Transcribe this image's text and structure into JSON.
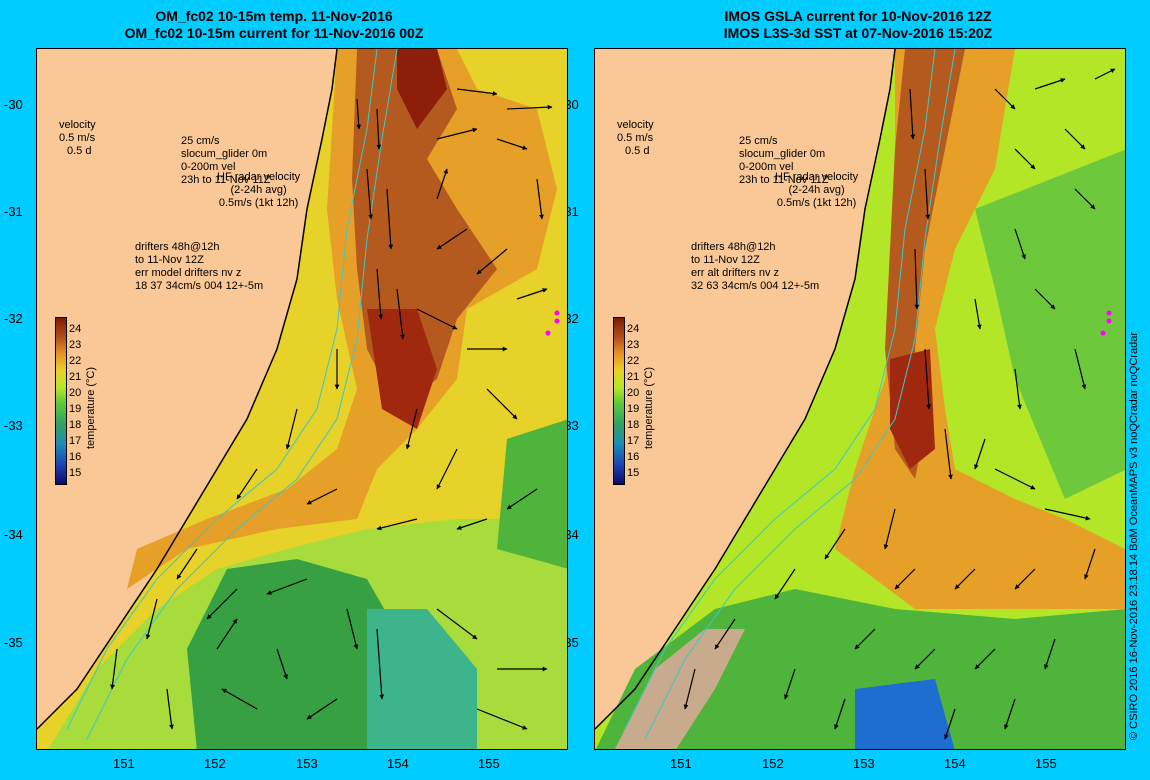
{
  "left": {
    "title_line1": "OM_fc02 10-15m temp. 11-Nov-2016",
    "title_line2": "OM_fc02 10-15m current for 11-Nov-2016 00Z",
    "drifters": [
      "drifters 48h@12h",
      "to 11-Nov 12Z",
      "err model drifters nv z",
      "18 37 34cm/s 004 12+-5m"
    ]
  },
  "right": {
    "title_line1": "IMOS GSLA current for 10-Nov-2016 12Z",
    "title_line2": "IMOS L3S-3d SST at 07-Nov-2016 15:20Z",
    "drifters": [
      "drifters 48h@12h",
      "to 11-Nov 12Z",
      "err alt drifters nv z",
      "32 63 34cm/s 004 12+-5m"
    ]
  },
  "legend": {
    "velocity": "velocity",
    "speed": "0.5 m/s",
    "duration": "0.5 d",
    "glider_scale": "25 cm/s",
    "glider": "slocum_glider 0m",
    "glider_depth": "0-200m vel",
    "glider_time": "23h to 11-Nov 11Z",
    "radar_label": "HF radar velocity",
    "radar_avg": "(2-24h avg)",
    "radar_scale": "0.5m/s (1kt 12h)"
  },
  "colorbar": {
    "title": "temperature (°C)",
    "ticks": [
      "24",
      "23",
      "22",
      "21",
      "20",
      "19",
      "18",
      "17",
      "16",
      "15"
    ]
  },
  "axes": {
    "lat_ticks": [
      "-30",
      "-31",
      "-32",
      "-33",
      "-34",
      "-35"
    ],
    "lon_ticks": [
      "151",
      "152",
      "153",
      "154",
      "155"
    ]
  },
  "credit": "© CSIRO 2016  16-Nov-2016 23:18:14 BoM OceanMAPS v3 noQCradar noQCradar",
  "colors": {
    "background": "#00ccff",
    "land": "#fac896",
    "warm": "#a0280f",
    "mid": "#e6a028",
    "cool": "#7dd228",
    "cold": "#32a050",
    "coldest": "#1e6ed2",
    "missing": "#c8aa8c",
    "drifter_marker": "#ff00ff",
    "glider_marker": "#0000cc"
  }
}
